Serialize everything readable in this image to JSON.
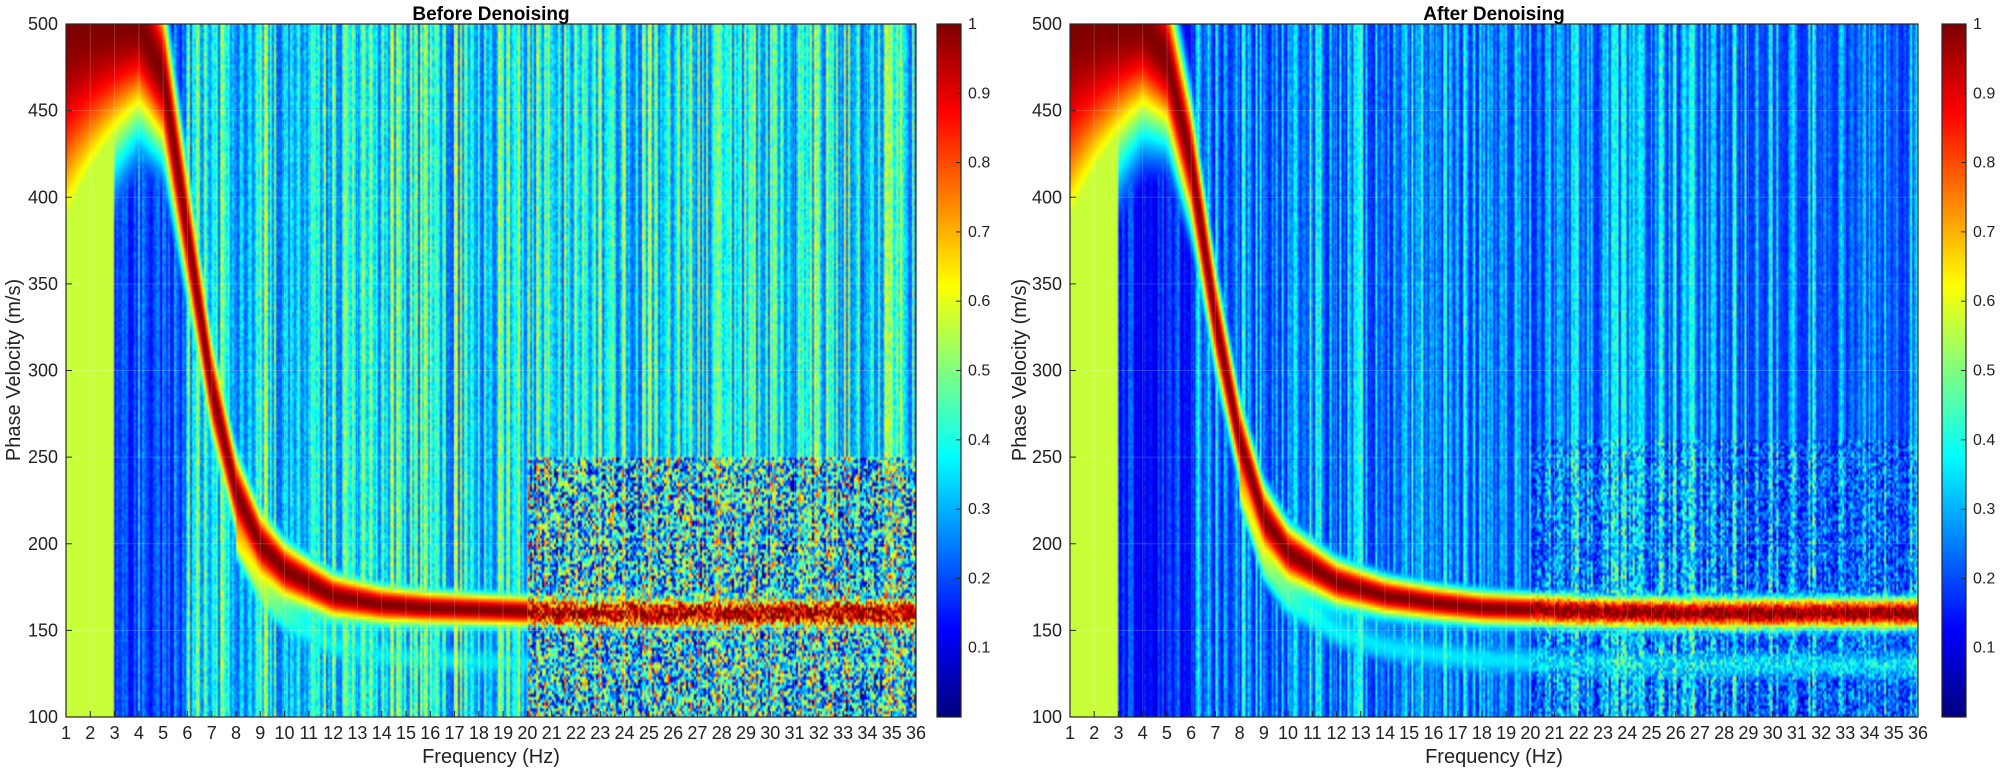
{
  "chart_data": [
    {
      "type": "heatmap",
      "title": "Before Denoising",
      "xlabel": "Frequency (Hz)",
      "ylabel": "Phase Velocity (m/s)",
      "xlim": [
        1,
        36
      ],
      "ylim": [
        100,
        500
      ],
      "xticks": [
        "1",
        "2",
        "3",
        "4",
        "5",
        "6",
        "7",
        "8",
        "9",
        "10",
        "11",
        "12",
        "13",
        "14",
        "15",
        "16",
        "17",
        "18",
        "19",
        "20",
        "21",
        "22",
        "23",
        "24",
        "25",
        "26",
        "27",
        "28",
        "29",
        "30",
        "31",
        "32",
        "33",
        "34",
        "35",
        "36"
      ],
      "yticks": [
        "100",
        "150",
        "200",
        "250",
        "300",
        "350",
        "400",
        "450",
        "500"
      ],
      "colorbar": {
        "range": [
          0,
          1
        ],
        "ticks": [
          "0.1",
          "0.2",
          "0.3",
          "0.4",
          "0.5",
          "0.6",
          "0.7",
          "0.8",
          "0.9",
          "1"
        ]
      },
      "colormap": "jet",
      "dispersion_curve": {
        "frequency_hz": [
          1,
          2,
          3,
          4,
          5,
          6,
          7,
          8,
          9,
          10,
          12,
          14,
          16,
          18,
          20,
          22,
          26,
          30,
          36
        ],
        "phase_velocity_ms": [
          500,
          500,
          500,
          500,
          470,
          380,
          290,
          230,
          200,
          185,
          170,
          165,
          163,
          162,
          161,
          160,
          160,
          160,
          160
        ]
      },
      "noise_level": "high"
    },
    {
      "type": "heatmap",
      "title": "After Denoising",
      "xlabel": "Frequency (Hz)",
      "ylabel": "Phase Velocity (m/s)",
      "xlim": [
        1,
        36
      ],
      "ylim": [
        100,
        500
      ],
      "xticks": [
        "1",
        "2",
        "3",
        "4",
        "5",
        "6",
        "7",
        "8",
        "9",
        "10",
        "11",
        "12",
        "13",
        "14",
        "15",
        "16",
        "17",
        "18",
        "19",
        "20",
        "21",
        "22",
        "23",
        "24",
        "25",
        "26",
        "27",
        "28",
        "29",
        "30",
        "31",
        "32",
        "33",
        "34",
        "35",
        "36"
      ],
      "yticks": [
        "100",
        "150",
        "200",
        "250",
        "300",
        "350",
        "400",
        "450",
        "500"
      ],
      "colorbar": {
        "range": [
          0,
          1
        ],
        "ticks": [
          "0.1",
          "0.2",
          "0.3",
          "0.4",
          "0.5",
          "0.6",
          "0.7",
          "0.8",
          "0.9",
          "1"
        ]
      },
      "colormap": "jet",
      "dispersion_curve": {
        "frequency_hz": [
          1,
          2,
          3,
          4,
          5,
          6,
          7,
          8,
          9,
          10,
          12,
          14,
          16,
          18,
          20,
          22,
          26,
          30,
          36
        ],
        "phase_velocity_ms": [
          500,
          500,
          500,
          500,
          480,
          420,
          330,
          260,
          215,
          195,
          178,
          170,
          166,
          163,
          162,
          161,
          160,
          160,
          160
        ]
      },
      "noise_level": "low"
    }
  ]
}
